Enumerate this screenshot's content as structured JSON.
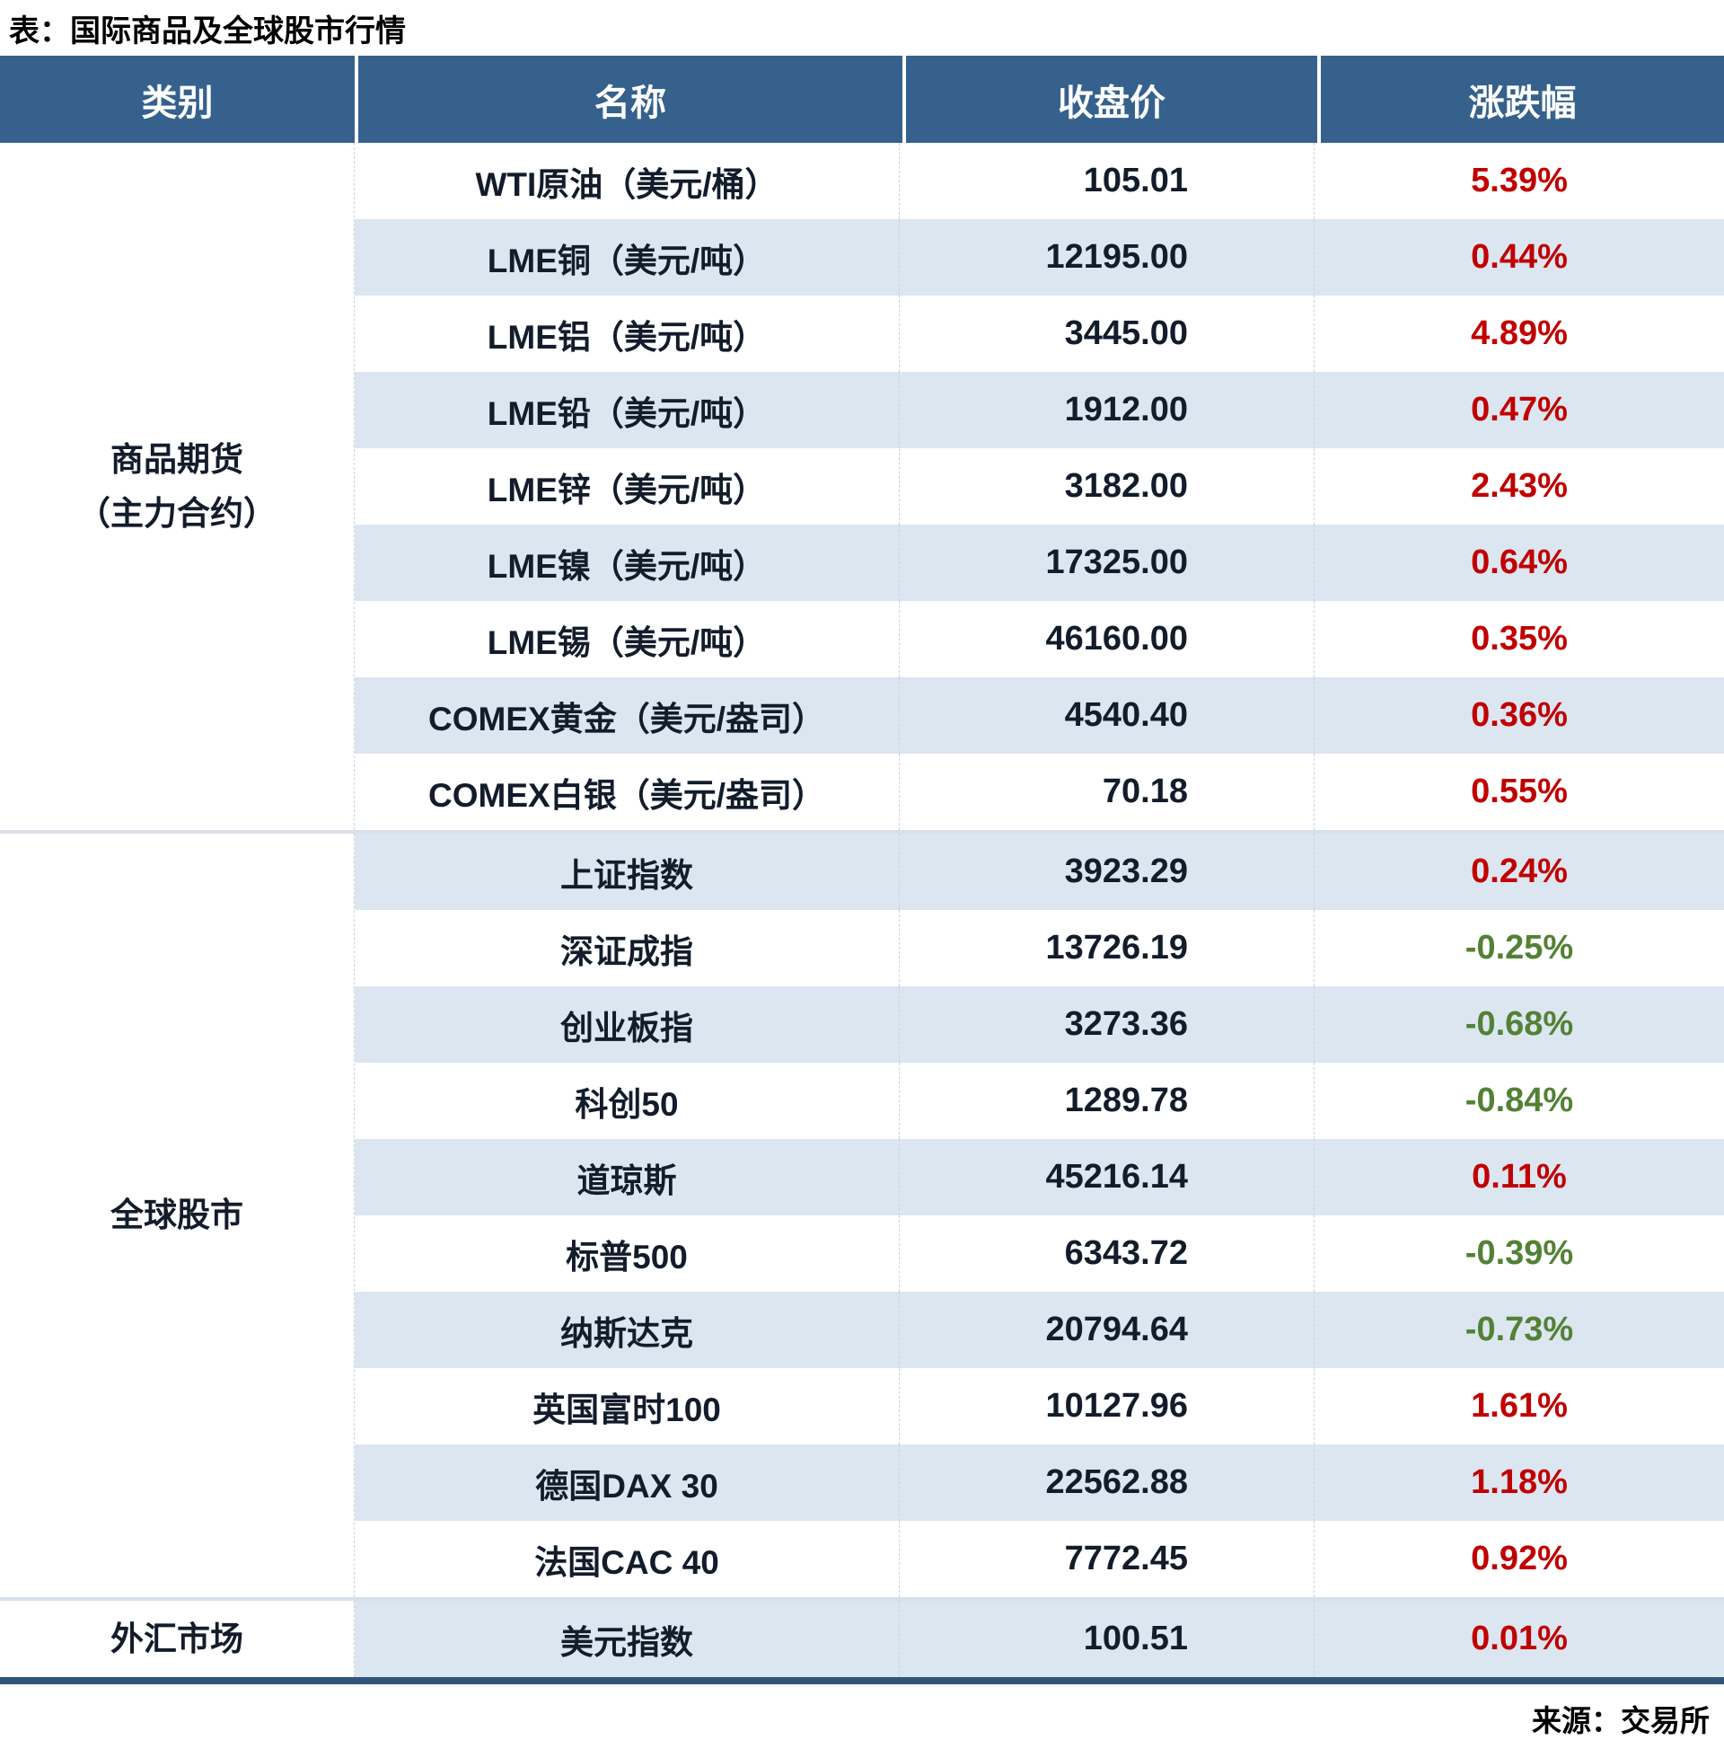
{
  "title": "表：国际商品及全球股市行情",
  "source": "来源：交易所",
  "columns": [
    "类别",
    "名称",
    "收盘价",
    "涨跌幅"
  ],
  "colors": {
    "header_bg": "#35618C",
    "row_alt": "#DCE6F1",
    "up": "#C00000",
    "down": "#538135",
    "text": "#131C2B",
    "bottom_border": "#2E5679",
    "separator": "#D8E0EA",
    "dashed": "#C9D2DD"
  },
  "sections": [
    {
      "category_lines": [
        "商品期货",
        "（主力合约）"
      ],
      "rows": [
        {
          "name": "WTI原油（美元/桶）",
          "close": "105.01",
          "change": "5.39%",
          "dir": "up"
        },
        {
          "name": "LME铜（美元/吨）",
          "close": "12195.00",
          "change": "0.44%",
          "dir": "up"
        },
        {
          "name": "LME铝（美元/吨）",
          "close": "3445.00",
          "change": "4.89%",
          "dir": "up"
        },
        {
          "name": "LME铅（美元/吨）",
          "close": "1912.00",
          "change": "0.47%",
          "dir": "up"
        },
        {
          "name": "LME锌（美元/吨）",
          "close": "3182.00",
          "change": "2.43%",
          "dir": "up"
        },
        {
          "name": "LME镍（美元/吨）",
          "close": "17325.00",
          "change": "0.64%",
          "dir": "up"
        },
        {
          "name": "LME锡（美元/吨）",
          "close": "46160.00",
          "change": "0.35%",
          "dir": "up"
        },
        {
          "name": "COMEX黄金（美元/盎司）",
          "close": "4540.40",
          "change": "0.36%",
          "dir": "up"
        },
        {
          "name": "COMEX白银（美元/盎司）",
          "close": "70.18",
          "change": "0.55%",
          "dir": "up"
        }
      ]
    },
    {
      "category_lines": [
        "全球股市"
      ],
      "rows": [
        {
          "name": "上证指数",
          "close": "3923.29",
          "change": "0.24%",
          "dir": "up"
        },
        {
          "name": "深证成指",
          "close": "13726.19",
          "change": "-0.25%",
          "dir": "down"
        },
        {
          "name": "创业板指",
          "close": "3273.36",
          "change": "-0.68%",
          "dir": "down"
        },
        {
          "name": "科创50",
          "close": "1289.78",
          "change": "-0.84%",
          "dir": "down"
        },
        {
          "name": "道琼斯",
          "close": "45216.14",
          "change": "0.11%",
          "dir": "up"
        },
        {
          "name": "标普500",
          "close": "6343.72",
          "change": "-0.39%",
          "dir": "down"
        },
        {
          "name": "纳斯达克",
          "close": "20794.64",
          "change": "-0.73%",
          "dir": "down"
        },
        {
          "name": "英国富时100",
          "close": "10127.96",
          "change": "1.61%",
          "dir": "up"
        },
        {
          "name": "德国DAX 30",
          "close": "22562.88",
          "change": "1.18%",
          "dir": "up"
        },
        {
          "name": "法国CAC 40",
          "close": "7772.45",
          "change": "0.92%",
          "dir": "up"
        }
      ]
    },
    {
      "category_lines": [
        "外汇市场"
      ],
      "rows": [
        {
          "name": "美元指数",
          "close": "100.51",
          "change": "0.01%",
          "dir": "up"
        }
      ]
    }
  ],
  "chart_data": {
    "type": "table",
    "title": "表：国际商品及全球股市行情",
    "columns": [
      "类别",
      "名称",
      "收盘价",
      "涨跌幅"
    ],
    "rows": [
      [
        "商品期货（主力合约）",
        "WTI原油（美元/桶）",
        105.01,
        "5.39%"
      ],
      [
        "商品期货（主力合约）",
        "LME铜（美元/吨）",
        12195.0,
        "0.44%"
      ],
      [
        "商品期货（主力合约）",
        "LME铝（美元/吨）",
        3445.0,
        "4.89%"
      ],
      [
        "商品期货（主力合约）",
        "LME铅（美元/吨）",
        1912.0,
        "0.47%"
      ],
      [
        "商品期货（主力合约）",
        "LME锌（美元/吨）",
        3182.0,
        "2.43%"
      ],
      [
        "商品期货（主力合约）",
        "LME镍（美元/吨）",
        17325.0,
        "0.64%"
      ],
      [
        "商品期货（主力合约）",
        "LME锡（美元/吨）",
        46160.0,
        "0.35%"
      ],
      [
        "商品期货（主力合约）",
        "COMEX黄金（美元/盎司）",
        4540.4,
        "0.36%"
      ],
      [
        "商品期货（主力合约）",
        "COMEX白银（美元/盎司）",
        70.18,
        "0.55%"
      ],
      [
        "全球股市",
        "上证指数",
        3923.29,
        "0.24%"
      ],
      [
        "全球股市",
        "深证成指",
        13726.19,
        "-0.25%"
      ],
      [
        "全球股市",
        "创业板指",
        3273.36,
        "-0.68%"
      ],
      [
        "全球股市",
        "科创50",
        1289.78,
        "-0.84%"
      ],
      [
        "全球股市",
        "道琼斯",
        45216.14,
        "0.11%"
      ],
      [
        "全球股市",
        "标普500",
        6343.72,
        "-0.39%"
      ],
      [
        "全球股市",
        "纳斯达克",
        20794.64,
        "-0.73%"
      ],
      [
        "全球股市",
        "英国富时100",
        10127.96,
        "1.61%"
      ],
      [
        "全球股市",
        "德国DAX 30",
        22562.88,
        "1.18%"
      ],
      [
        "全球股市",
        "法国CAC 40",
        7772.45,
        "0.92%"
      ],
      [
        "外汇市场",
        "美元指数",
        100.51,
        "0.01%"
      ]
    ],
    "notes": "正值红色(上涨)，负值绿色(下跌)",
    "source": "来源：交易所"
  }
}
